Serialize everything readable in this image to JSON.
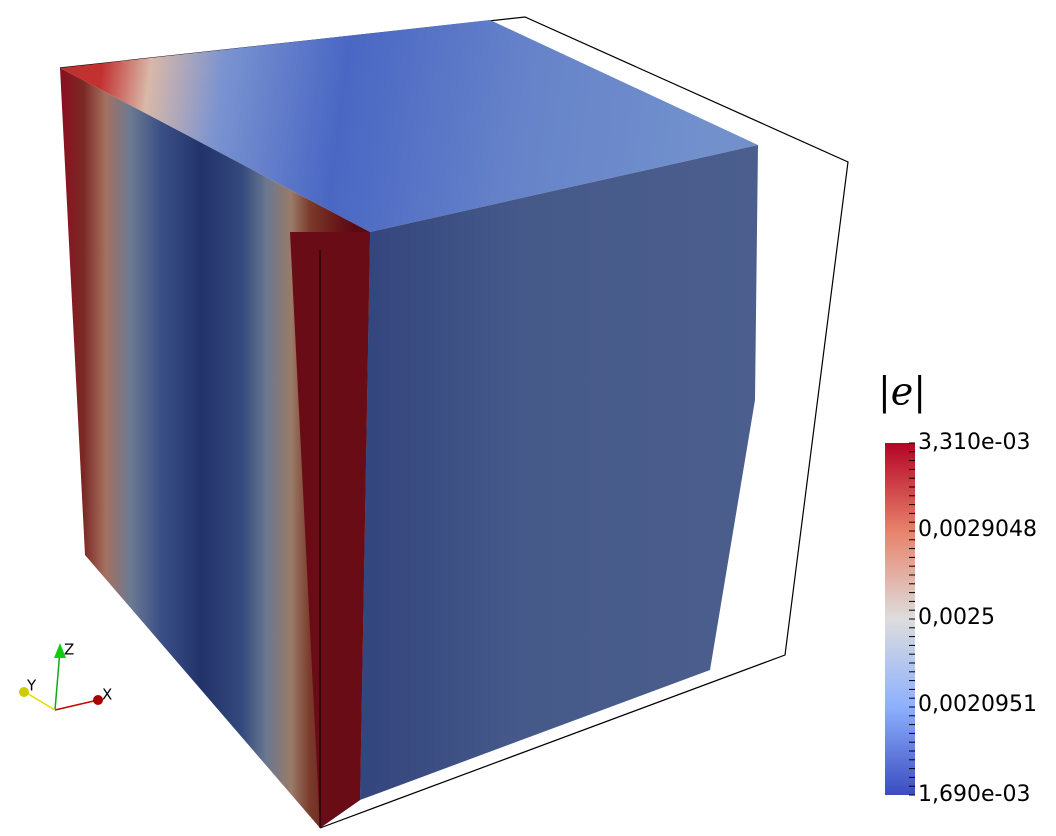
{
  "colorbar": {
    "title": "|e|",
    "labels": [
      "3,310e-03",
      "0,0029048",
      "0,0025",
      "0,0020951",
      "1,690e-03"
    ]
  },
  "axes": {
    "x": "X",
    "y": "Y",
    "z": "Z"
  }
}
